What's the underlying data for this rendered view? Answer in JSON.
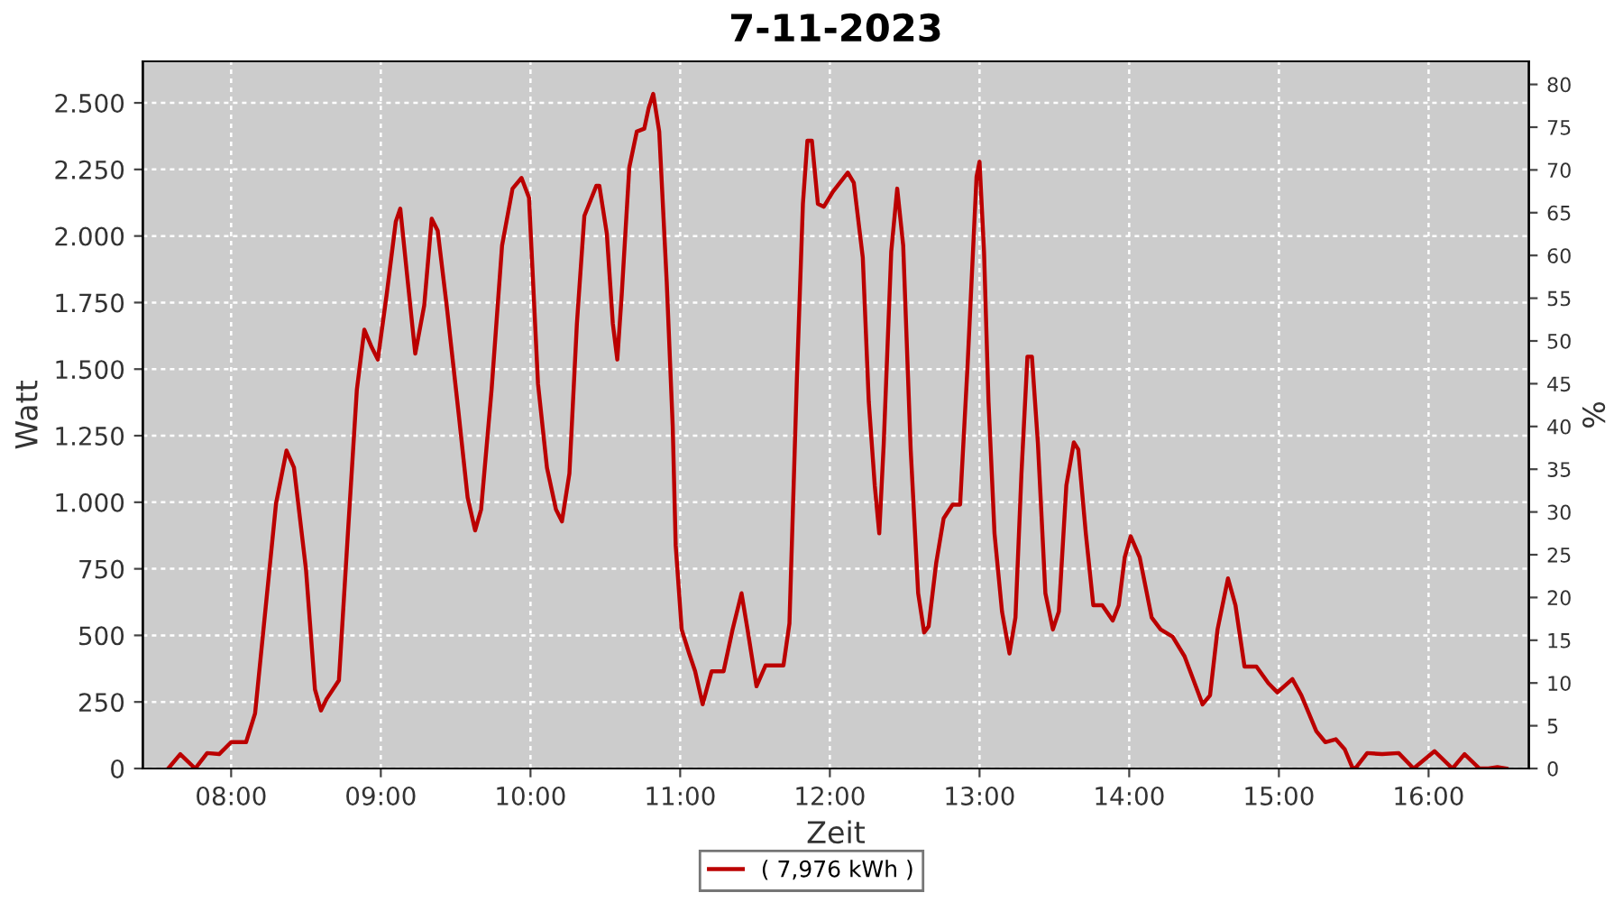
{
  "chart_data": {
    "type": "line",
    "title": "7-11-2023",
    "xlabel": "Zeit",
    "ylabel": "Watt",
    "y2label": "%",
    "xlim": [
      7.41,
      16.67
    ],
    "xticks": [
      {
        "value": 8,
        "label": "08:00"
      },
      {
        "value": 9,
        "label": "09:00"
      },
      {
        "value": 10,
        "label": "10:00"
      },
      {
        "value": 11,
        "label": "11:00"
      },
      {
        "value": 12,
        "label": "12:00"
      },
      {
        "value": 13,
        "label": "13:00"
      },
      {
        "value": 14,
        "label": "14:00"
      },
      {
        "value": 15,
        "label": "15:00"
      },
      {
        "value": 16,
        "label": "16:00"
      }
    ],
    "ylim": [
      0,
      2656
    ],
    "yticks": [
      0,
      250,
      500,
      750,
      {
        "value": 1000,
        "label": "1.000"
      },
      {
        "value": 1250,
        "label": "1.250"
      },
      {
        "value": 1500,
        "label": "1.500"
      },
      {
        "value": 1750,
        "label": "1.750"
      },
      {
        "value": 2000,
        "label": "2.000"
      },
      {
        "value": 2250,
        "label": "2.250"
      },
      {
        "value": 2500,
        "label": "2.500"
      }
    ],
    "y2lim": [
      0,
      82.7
    ],
    "y2ticks": [
      0,
      5,
      10,
      15,
      20,
      25,
      30,
      35,
      40,
      45,
      50,
      55,
      60,
      65,
      70,
      75,
      80
    ],
    "grid": true,
    "legend": "bottom",
    "marker": "none",
    "line_style": "solid",
    "series": [
      {
        "name": "( 7,976 kWh )",
        "color": "#bb0000",
        "x": [
          7.58,
          7.66,
          7.76,
          7.84,
          7.92,
          8.0,
          8.1,
          8.16,
          8.22,
          8.3,
          8.37,
          8.42,
          8.5,
          8.56,
          8.6,
          8.64,
          8.72,
          8.78,
          8.84,
          8.89,
          8.94,
          8.98,
          9.04,
          9.1,
          9.13,
          9.18,
          9.23,
          9.29,
          9.34,
          9.38,
          9.44,
          9.52,
          9.58,
          9.63,
          9.67,
          9.74,
          9.81,
          9.88,
          9.94,
          9.99,
          10.05,
          10.11,
          10.17,
          10.21,
          10.26,
          10.31,
          10.36,
          10.44,
          10.46,
          10.51,
          10.55,
          10.58,
          10.61,
          10.66,
          10.71,
          10.76,
          10.79,
          10.82,
          10.86,
          10.91,
          10.95,
          10.97,
          11.01,
          11.06,
          11.1,
          11.15,
          11.21,
          11.29,
          11.35,
          11.41,
          11.45,
          11.51,
          11.57,
          11.62,
          11.69,
          11.73,
          11.78,
          11.82,
          11.85,
          11.88,
          11.92,
          11.96,
          12.02,
          12.12,
          12.16,
          12.22,
          12.26,
          12.3,
          12.33,
          12.36,
          12.41,
          12.45,
          12.49,
          12.54,
          12.59,
          12.63,
          12.66,
          12.71,
          12.76,
          12.82,
          12.87,
          12.92,
          12.98,
          13.0,
          13.03,
          13.06,
          13.1,
          13.15,
          13.2,
          13.24,
          13.28,
          13.32,
          13.35,
          13.39,
          13.44,
          13.49,
          13.53,
          13.58,
          13.63,
          13.66,
          13.71,
          13.76,
          13.82,
          13.89,
          13.93,
          13.97,
          14.01,
          14.07,
          14.15,
          14.21,
          14.29,
          14.37,
          14.43,
          14.49,
          14.54,
          14.59,
          14.66,
          14.71,
          14.77,
          14.85,
          14.93,
          14.99,
          15.09,
          15.15,
          15.25,
          15.31,
          15.38,
          15.44,
          15.49,
          15.51,
          15.59,
          15.69,
          15.8,
          15.9,
          16.04,
          16.16,
          16.24,
          16.34,
          16.4,
          16.46,
          16.52
        ],
        "values": [
          0,
          54,
          0,
          58,
          54,
          99,
          99,
          207,
          545,
          995,
          1194,
          1130,
          748,
          297,
          218,
          263,
          331,
          883,
          1423,
          1648,
          1581,
          1536,
          1784,
          2054,
          2103,
          1829,
          1558,
          1739,
          2065,
          2020,
          1739,
          1333,
          1018,
          894,
          973,
          1423,
          1964,
          2178,
          2218,
          2144,
          1446,
          1130,
          973,
          928,
          1108,
          1671,
          2076,
          2189,
          2189,
          2009,
          1671,
          1536,
          1784,
          2257,
          2392,
          2403,
          2482,
          2534,
          2392,
          1829,
          1288,
          838,
          522,
          432,
          365,
          241,
          365,
          365,
          522,
          658,
          522,
          309,
          387,
          387,
          387,
          545,
          1468,
          2121,
          2358,
          2358,
          2121,
          2110,
          2166,
          2238,
          2200,
          1919,
          1378,
          1063,
          883,
          1221,
          1941,
          2178,
          1964,
          1198,
          658,
          511,
          534,
          770,
          939,
          991,
          991,
          1513,
          2223,
          2279,
          1941,
          1378,
          883,
          590,
          432,
          567,
          1108,
          1547,
          1547,
          1221,
          658,
          522,
          590,
          1063,
          1225,
          1198,
          883,
          613,
          613,
          556,
          613,
          793,
          872,
          793,
          567,
          522,
          495,
          421,
          331,
          241,
          275,
          522,
          714,
          613,
          383,
          383,
          320,
          286,
          336,
          275,
          140,
          99,
          110,
          72,
          5,
          0,
          58,
          54,
          58,
          0,
          65,
          0,
          54,
          0,
          0,
          5,
          0
        ]
      }
    ]
  }
}
